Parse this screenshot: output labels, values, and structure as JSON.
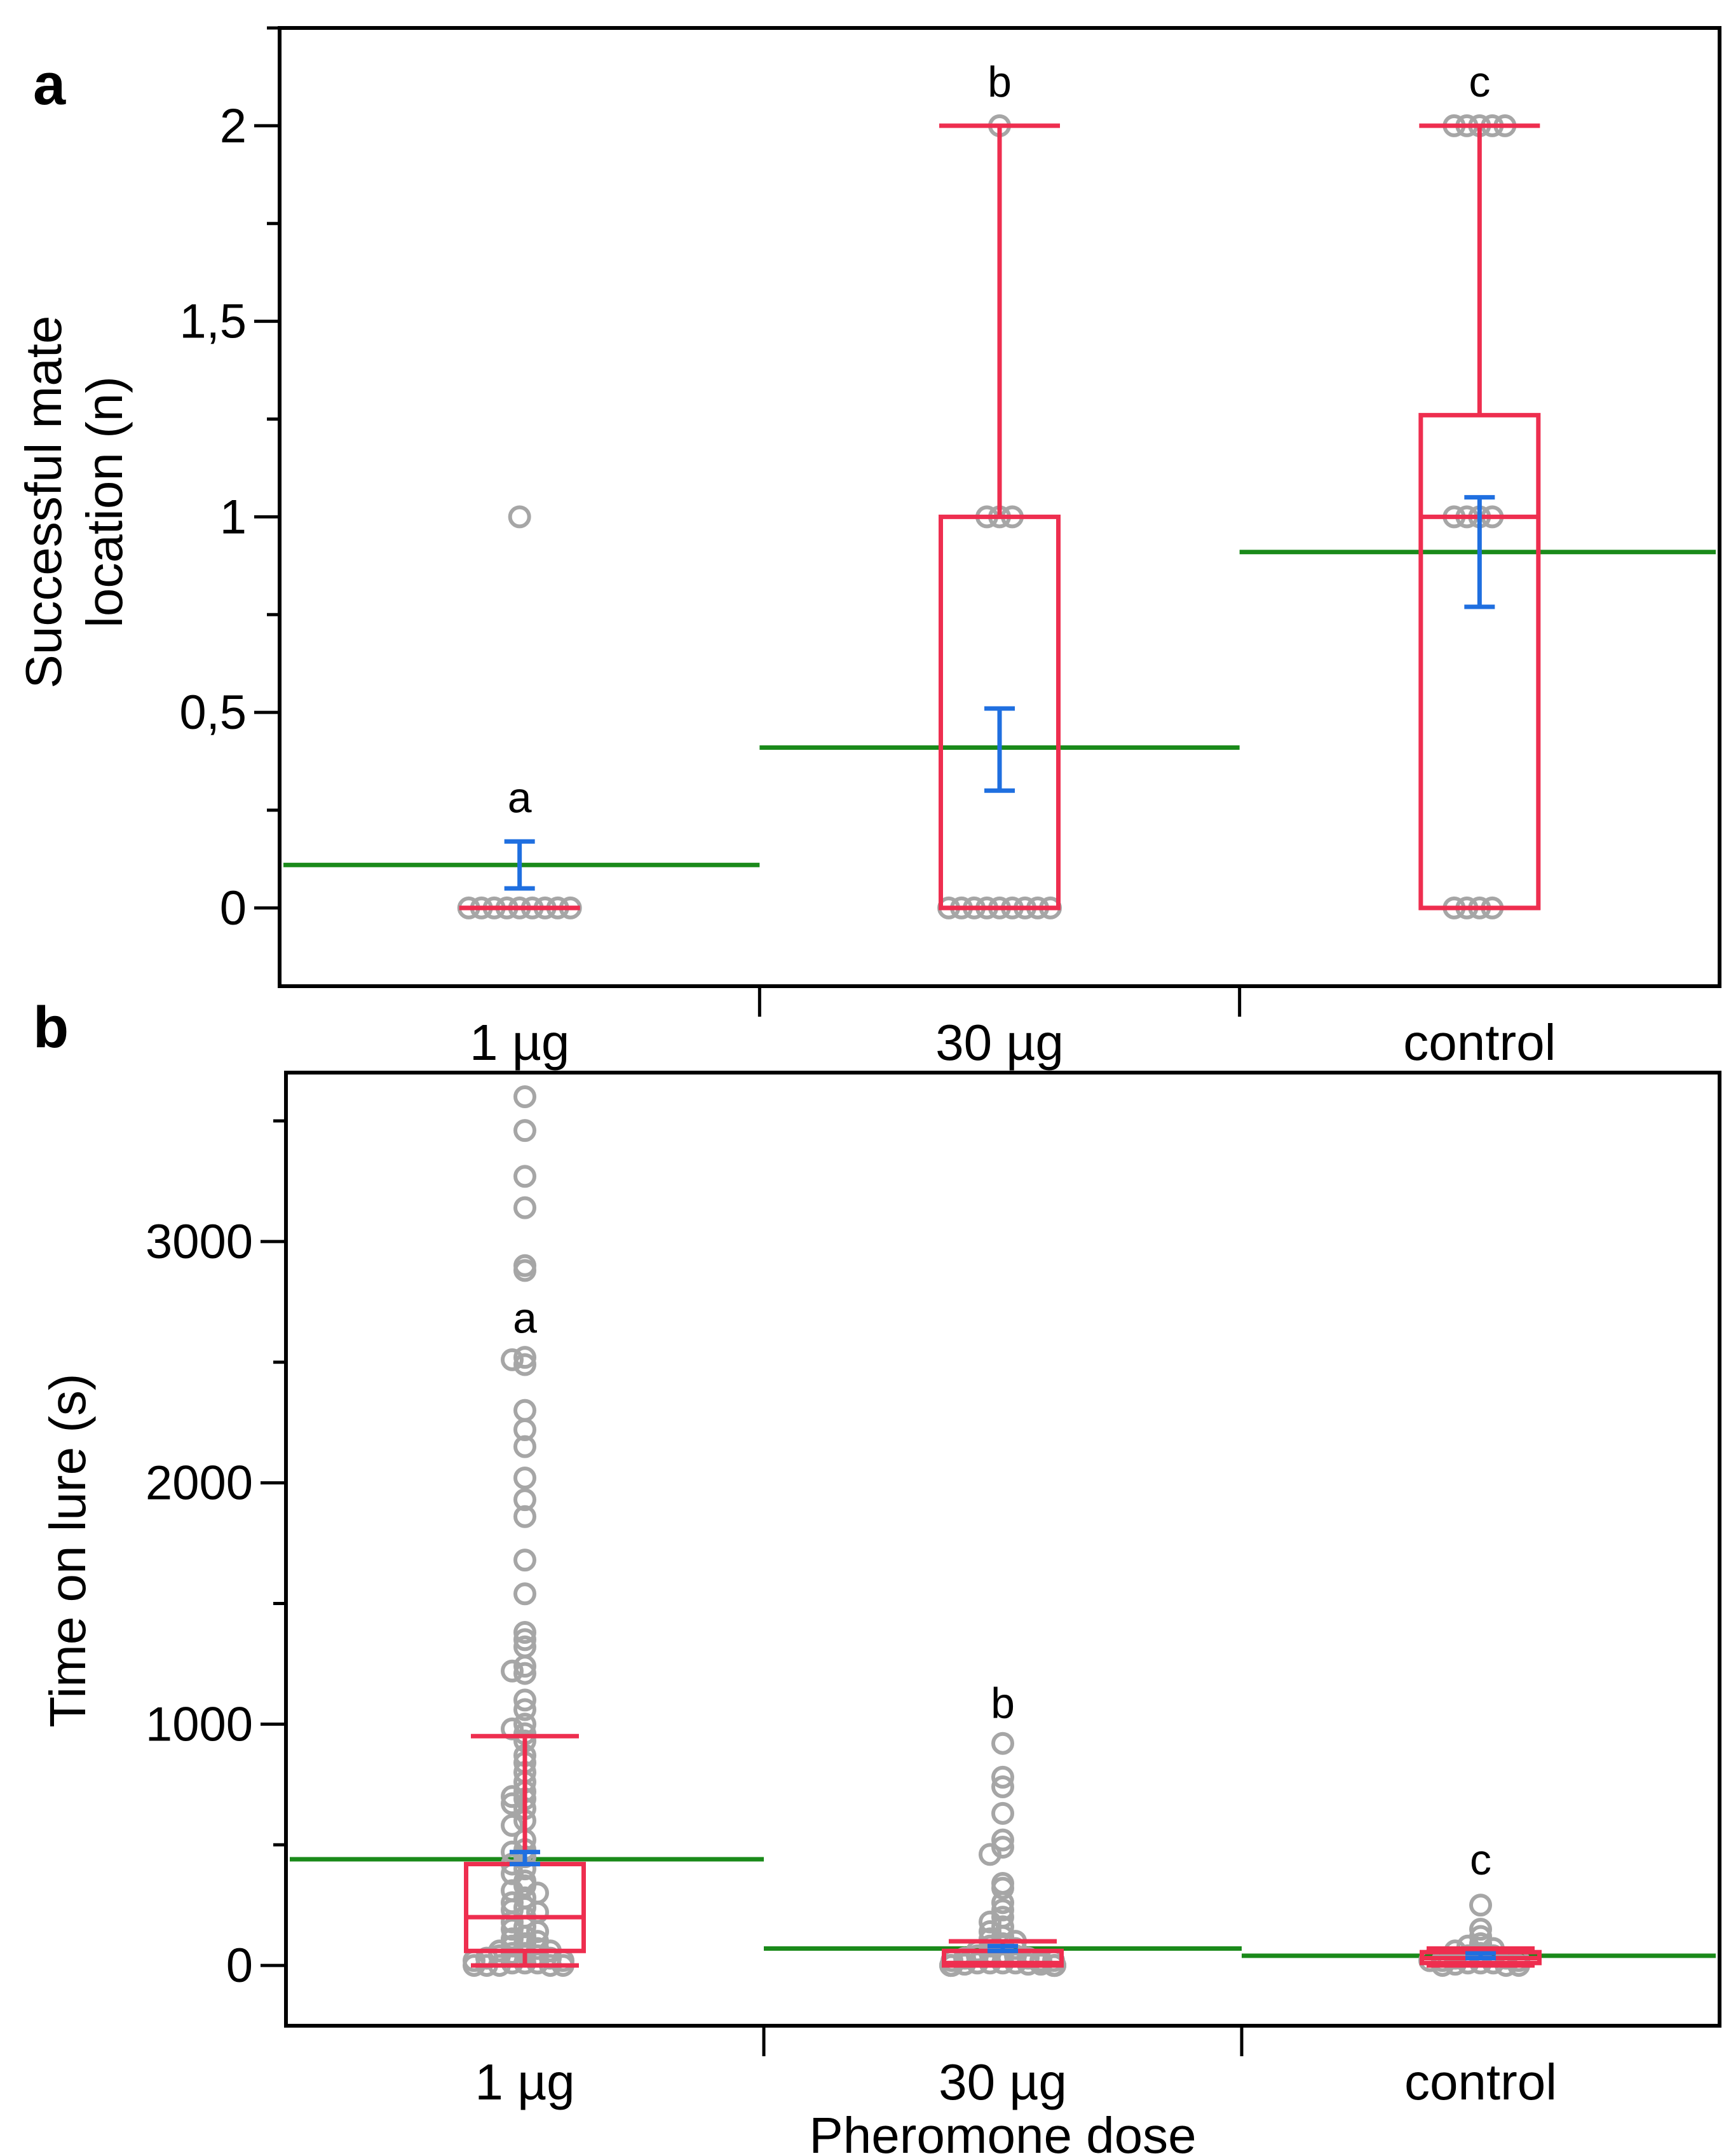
{
  "figure": {
    "x_title": "Pheromone dose",
    "colors": {
      "points": "#a6a6a6",
      "box": "#ee2e4f",
      "mean_line": "#1a8a1a",
      "error_bar": "#1f6fe0",
      "axis": "#000000"
    }
  },
  "chart_data": [
    {
      "type": "box",
      "panel_label": "a",
      "ylabel_lines": [
        "Successful mate",
        "location (n)"
      ],
      "categories": [
        "1 µg",
        "30 µg",
        "control"
      ],
      "ylim": [
        -0.2,
        2.25
      ],
      "yticks": [
        {
          "value": 0,
          "label": "0"
        },
        {
          "value": 0.5,
          "label": "0,5"
        },
        {
          "value": 1,
          "label": "1"
        },
        {
          "value": 1.5,
          "label": "1,5"
        },
        {
          "value": 2,
          "label": "2"
        }
      ],
      "grid": false,
      "groups": [
        {
          "category": "1 µg",
          "letter": "a",
          "points": [
            0,
            0,
            0,
            0,
            0,
            0,
            0,
            0,
            0,
            1
          ],
          "box": {
            "min": 0,
            "q1": 0,
            "median": 0,
            "q3": 0,
            "max": 0
          },
          "mean": 0.11,
          "error": [
            0.05,
            0.17
          ]
        },
        {
          "category": "30 µg",
          "letter": "b",
          "points": [
            0,
            0,
            0,
            0,
            0,
            0,
            0,
            0,
            0,
            1,
            1,
            1,
            2
          ],
          "box": {
            "min": 0,
            "q1": 0,
            "median": 0,
            "q3": 1,
            "max": 2
          },
          "mean": 0.41,
          "error": [
            0.3,
            0.51
          ]
        },
        {
          "category": "control",
          "letter": "c",
          "points": [
            0,
            0,
            0,
            0,
            1,
            1,
            1,
            1,
            2,
            2,
            2,
            2,
            2
          ],
          "box": {
            "min": 0,
            "q1": 0,
            "median": 1,
            "q3": 1.26,
            "max": 2
          },
          "mean": 0.91,
          "error": [
            0.77,
            1.05
          ]
        }
      ]
    },
    {
      "type": "box",
      "panel_label": "b",
      "ylabel": "Time on lure (s)",
      "xlabel": "Pheromone dose",
      "categories": [
        "1 µg",
        "30 µg",
        "control"
      ],
      "ylim": [
        -250,
        3700
      ],
      "yticks": [
        {
          "value": 0,
          "label": "0"
        },
        {
          "value": 1000,
          "label": "1000"
        },
        {
          "value": 2000,
          "label": "2000"
        },
        {
          "value": 3000,
          "label": "3000"
        }
      ],
      "grid": false,
      "groups": [
        {
          "category": "1 µg",
          "letter": "a",
          "points": [
            3600,
            3460,
            3270,
            3140,
            2900,
            2880,
            2520,
            2510,
            2490,
            2300,
            2220,
            2150,
            2020,
            1930,
            1860,
            1680,
            1540,
            1380,
            1350,
            1320,
            1240,
            1220,
            1210,
            1100,
            1060,
            1000,
            980,
            960,
            930,
            870,
            840,
            800,
            760,
            720,
            700,
            690,
            670,
            650,
            600,
            580,
            520,
            480,
            470,
            450,
            420,
            400,
            380,
            350,
            330,
            310,
            300,
            280,
            260,
            240,
            230,
            220,
            200,
            180,
            160,
            150,
            140,
            120,
            110,
            100,
            90,
            80,
            70,
            60,
            60,
            50,
            50,
            40,
            40,
            30,
            30,
            20,
            20,
            10,
            10,
            10,
            0,
            0,
            0,
            0,
            0
          ],
          "box": {
            "min": 0,
            "q1": 60,
            "median": 200,
            "q3": 420,
            "max": 950
          },
          "mean": 440,
          "error": [
            420,
            470
          ]
        },
        {
          "category": "30 µg",
          "letter": "b",
          "points": [
            920,
            780,
            740,
            630,
            520,
            490,
            460,
            340,
            320,
            260,
            230,
            200,
            180,
            160,
            140,
            120,
            110,
            100,
            90,
            80,
            70,
            60,
            50,
            50,
            40,
            40,
            30,
            30,
            20,
            20,
            20,
            10,
            10,
            10,
            10,
            5,
            5,
            5,
            0,
            0,
            0,
            0,
            0,
            0,
            0,
            0
          ],
          "box": {
            "min": 0,
            "q1": 0,
            "median": 10,
            "q3": 60,
            "max": 100
          },
          "mean": 70,
          "error": [
            60,
            80
          ]
        },
        {
          "category": "control",
          "letter": "c",
          "points": [
            250,
            150,
            120,
            90,
            80,
            70,
            60,
            50,
            40,
            40,
            30,
            30,
            20,
            20,
            20,
            10,
            10,
            10,
            5,
            0,
            0,
            0
          ],
          "box": {
            "min": 0,
            "q1": 10,
            "median": 30,
            "q3": 55,
            "max": 70
          },
          "mean": 40,
          "error": [
            30,
            50
          ]
        }
      ]
    }
  ]
}
